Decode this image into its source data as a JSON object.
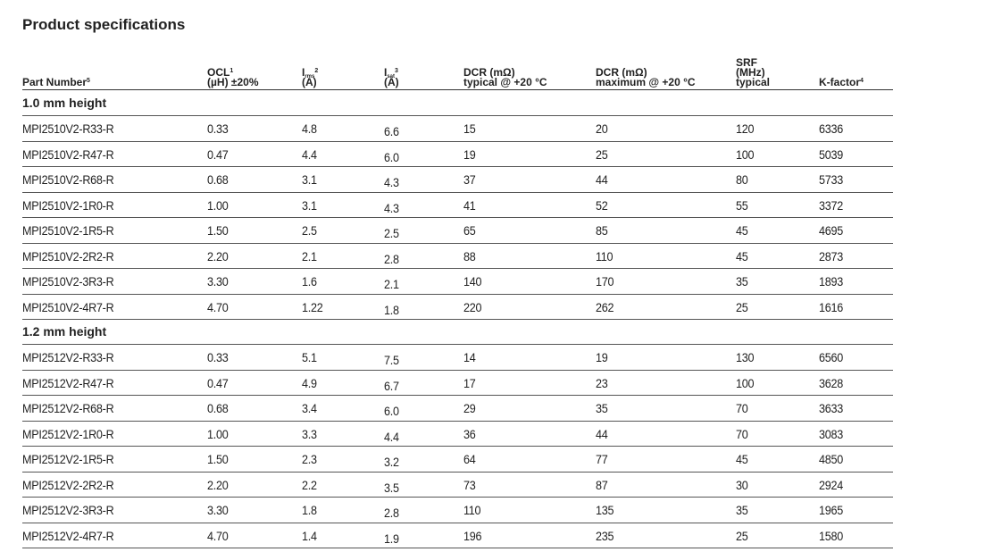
{
  "header": {
    "title": "Product specifications"
  },
  "table": {
    "columns": [
      {
        "lines": [
          {
            "text": "Part Number",
            "sup": "5"
          }
        ]
      },
      {
        "lines": [
          {
            "text": "OCL",
            "sup": "1"
          },
          {
            "text": "(µH) ±20%"
          }
        ]
      },
      {
        "lines": [
          {
            "text": "I",
            "sub": "rms",
            "sup": "2"
          },
          {
            "text": "(A)"
          }
        ]
      },
      {
        "lines": [
          {
            "text": "I",
            "sub": "sat",
            "sup": "3"
          },
          {
            "text": "(A)"
          }
        ]
      },
      {
        "lines": [
          {
            "text": "DCR (mΩ)"
          },
          {
            "text": "typical @ +20 °C"
          }
        ]
      },
      {
        "lines": [
          {
            "text": "DCR (mΩ)"
          },
          {
            "text": "maximum @ +20 °C"
          }
        ]
      },
      {
        "lines": [
          {
            "text": "SRF"
          },
          {
            "text": "(MHz)"
          },
          {
            "text": "typical"
          }
        ]
      },
      {
        "lines": [
          {
            "text": "K-factor",
            "sup": "4"
          }
        ]
      }
    ],
    "groups": [
      {
        "label": "1.0 mm height",
        "rows": [
          [
            "MPI2510V2-R33-R",
            "0.33",
            "4.8",
            "6.6",
            "15",
            "20",
            "120",
            "6336"
          ],
          [
            "MPI2510V2-R47-R",
            "0.47",
            "4.4",
            "6.0",
            "19",
            "25",
            "100",
            "5039"
          ],
          [
            "MPI2510V2-R68-R",
            "0.68",
            "3.1",
            "4.3",
            "37",
            "44",
            "80",
            "5733"
          ],
          [
            "MPI2510V2-1R0-R",
            "1.00",
            "3.1",
            "4.3",
            "41",
            "52",
            "55",
            "3372"
          ],
          [
            "MPI2510V2-1R5-R",
            "1.50",
            "2.5",
            "2.5",
            "65",
            "85",
            "45",
            "4695"
          ],
          [
            "MPI2510V2-2R2-R",
            "2.20",
            "2.1",
            "2.8",
            "88",
            "110",
            "45",
            "2873"
          ],
          [
            "MPI2510V2-3R3-R",
            "3.30",
            "1.6",
            "2.1",
            "140",
            "170",
            "35",
            "1893"
          ],
          [
            "MPI2510V2-4R7-R",
            "4.70",
            "1.22",
            "1.8",
            "220",
            "262",
            "25",
            "1616"
          ]
        ]
      },
      {
        "label": "1.2 mm height",
        "rows": [
          [
            "MPI2512V2-R33-R",
            "0.33",
            "5.1",
            "7.5",
            "14",
            "19",
            "130",
            "6560"
          ],
          [
            "MPI2512V2-R47-R",
            "0.47",
            "4.9",
            "6.7",
            "17",
            "23",
            "100",
            "3628"
          ],
          [
            "MPI2512V2-R68-R",
            "0.68",
            "3.4",
            "6.0",
            "29",
            "35",
            "70",
            "3633"
          ],
          [
            "MPI2512V2-1R0-R",
            "1.00",
            "3.3",
            "4.4",
            "36",
            "44",
            "70",
            "3083"
          ],
          [
            "MPI2512V2-1R5-R",
            "1.50",
            "2.3",
            "3.2",
            "64",
            "77",
            "45",
            "4850"
          ],
          [
            "MPI2512V2-2R2-R",
            "2.20",
            "2.2",
            "3.5",
            "73",
            "87",
            "30",
            "2924"
          ],
          [
            "MPI2512V2-3R3-R",
            "3.30",
            "1.8",
            "2.8",
            "110",
            "135",
            "35",
            "1965"
          ],
          [
            "MPI2512V2-4R7-R",
            "4.70",
            "1.4",
            "1.9",
            "196",
            "235",
            "25",
            "1580"
          ]
        ]
      }
    ]
  }
}
